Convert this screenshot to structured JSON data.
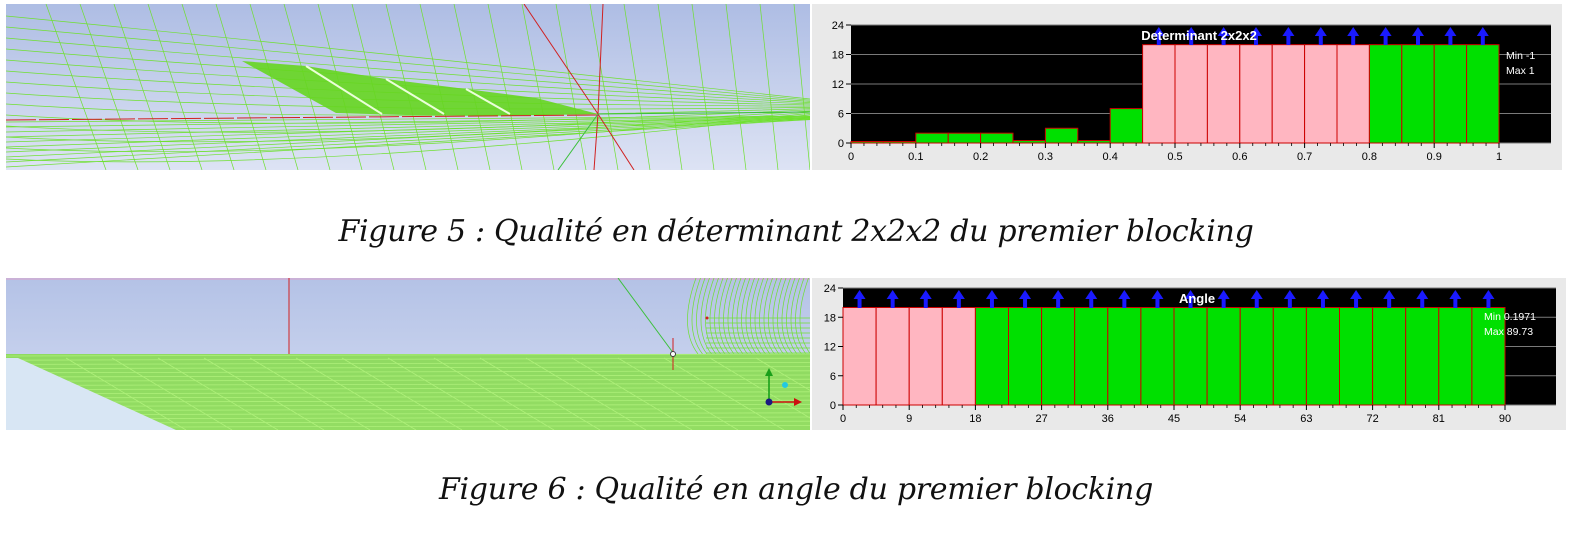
{
  "figures": [
    {
      "id": "fig5",
      "caption": "Figure 5 : Qualité en déterminant 2x2x2 du premier blocking",
      "chart_data": {
        "type": "bar",
        "title": "Determinant 2x2x2",
        "x_bin_edges": [
          0,
          0.05,
          0.1,
          0.15,
          0.2,
          0.25,
          0.3,
          0.35,
          0.4,
          0.45,
          0.5,
          0.55,
          0.6,
          0.65,
          0.7,
          0.75,
          0.8,
          0.85,
          0.9,
          0.95,
          1.0
        ],
        "values": [
          0.3,
          0.3,
          2,
          2,
          2,
          0.5,
          3,
          0.5,
          7,
          20,
          20,
          20,
          20,
          20,
          20,
          20,
          20,
          20,
          20,
          20
        ],
        "overflow": [
          false,
          false,
          false,
          false,
          false,
          false,
          false,
          false,
          false,
          true,
          true,
          true,
          true,
          true,
          true,
          true,
          true,
          true,
          true,
          true
        ],
        "bar_colors": [
          "#00e000",
          "#00e000",
          "#00e000",
          "#00e000",
          "#00e000",
          "#00e000",
          "#00e000",
          "#00e000",
          "#00e000",
          "#ffb6c1",
          "#ffb6c1",
          "#ffb6c1",
          "#ffb6c1",
          "#ffb6c1",
          "#ffb6c1",
          "#ffb6c1",
          "#00e000",
          "#00e000",
          "#00e000",
          "#00e000"
        ],
        "xlim": [
          0,
          1
        ],
        "ylim": [
          0,
          24
        ],
        "x_ticks": [
          "0",
          "0.1",
          "0.2",
          "0.3",
          "0.4",
          "0.5",
          "0.6",
          "0.7",
          "0.8",
          "0.9",
          "1"
        ],
        "y_ticks": [
          "0",
          "6",
          "12",
          "18",
          "24"
        ],
        "min_label": "Min -1",
        "max_label": "Max 1",
        "background": "#000000",
        "grid": true
      }
    },
    {
      "id": "fig6",
      "caption": "Figure 6 : Qualité en angle du premier blocking",
      "chart_data": {
        "type": "bar",
        "title": "Angle",
        "x_bin_edges": [
          0,
          4.5,
          9,
          13.5,
          18,
          22.5,
          27,
          31.5,
          36,
          40.5,
          45,
          49.5,
          54,
          58.5,
          63,
          67.5,
          72,
          76.5,
          81,
          85.5,
          90
        ],
        "values": [
          20,
          20,
          20,
          20,
          20,
          20,
          20,
          20,
          20,
          20,
          20,
          20,
          20,
          20,
          20,
          20,
          20,
          20,
          20,
          20
        ],
        "overflow": [
          true,
          true,
          true,
          true,
          true,
          true,
          true,
          true,
          true,
          true,
          true,
          true,
          true,
          true,
          true,
          true,
          true,
          true,
          true,
          true
        ],
        "bar_colors": [
          "#ffb6c1",
          "#ffb6c1",
          "#ffb6c1",
          "#ffb6c1",
          "#00e000",
          "#00e000",
          "#00e000",
          "#00e000",
          "#00e000",
          "#00e000",
          "#00e000",
          "#00e000",
          "#00e000",
          "#00e000",
          "#00e000",
          "#00e000",
          "#00e000",
          "#00e000",
          "#00e000",
          "#00e000"
        ],
        "xlim": [
          0,
          90
        ],
        "ylim": [
          0,
          24
        ],
        "x_ticks": [
          "0",
          "9",
          "18",
          "27",
          "36",
          "45",
          "54",
          "63",
          "72",
          "81",
          "90"
        ],
        "y_ticks": [
          "0",
          "6",
          "12",
          "18",
          "24"
        ],
        "min_label": "Min 0.1971",
        "max_label": "Max 89.73",
        "background": "#000000",
        "grid": true
      }
    }
  ],
  "colors": {
    "mesh_green": "#66dd22",
    "sky_top": "#a9b9e2",
    "sky_bottom": "#d4dcf2",
    "pink_bar": "#ffb6c1",
    "green_bar": "#00e000",
    "bar_outline": "#cc0000",
    "arrow": "#1a1aff"
  },
  "icons": {
    "axis_triad": "xyz-axis-triad-icon"
  }
}
